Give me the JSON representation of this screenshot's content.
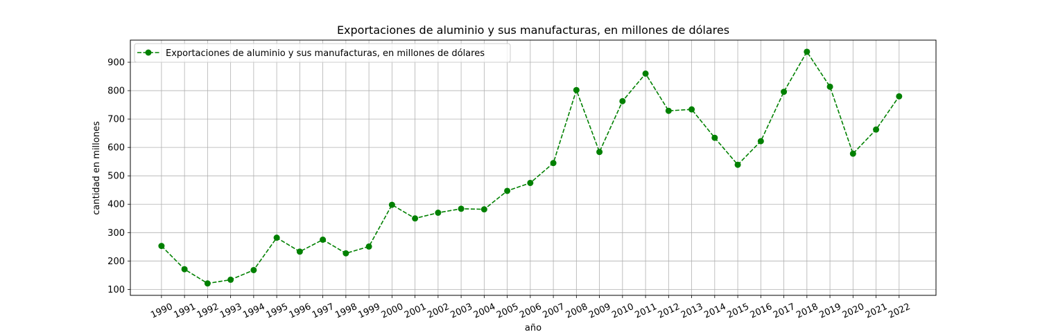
{
  "chart_data": {
    "type": "line",
    "title": "Exportaciones de aluminio y sus manufacturas, en millones de dólares",
    "xlabel": "año",
    "ylabel": "cantidad en millones",
    "x": [
      1990,
      1991,
      1992,
      1993,
      1994,
      1995,
      1996,
      1997,
      1998,
      1999,
      2000,
      2001,
      2002,
      2003,
      2004,
      2005,
      2006,
      2007,
      2008,
      2009,
      2010,
      2011,
      2012,
      2013,
      2014,
      2015,
      2016,
      2017,
      2018,
      2019,
      2020,
      2021,
      2022
    ],
    "x_tick_labels": [
      "1990",
      "1991",
      "1992",
      "1993",
      "1994",
      "1995",
      "1996",
      "1997",
      "1998",
      "1999",
      "2000",
      "2001",
      "2002",
      "2003",
      "2004",
      "2005",
      "2006",
      "2007",
      "2008",
      "2009",
      "2010",
      "2011",
      "2012",
      "2013",
      "2014",
      "2015",
      "2016",
      "2017",
      "2018",
      "2019",
      "2020",
      "2021",
      "2022"
    ],
    "y_ticks": [
      100,
      200,
      300,
      400,
      500,
      600,
      700,
      800,
      900
    ],
    "y_tick_labels": [
      "100",
      "200",
      "300",
      "400",
      "500",
      "600",
      "700",
      "800",
      "900"
    ],
    "ylim": [
      79,
      978
    ],
    "xlim": [
      1988.65,
      2023.6
    ],
    "grid": true,
    "legend_position": "top-left",
    "series": [
      {
        "name": "Exportaciones de aluminio y sus manufacturas, en millones de dólares",
        "color": "#008000",
        "line_style": "dashed",
        "marker": "circle",
        "values": [
          253,
          171,
          121,
          134,
          168,
          282,
          233,
          275,
          227,
          251,
          398,
          350,
          370,
          384,
          382,
          447,
          475,
          545,
          802,
          584,
          763,
          860,
          729,
          734,
          634,
          539,
          622,
          796,
          937,
          814,
          578,
          663,
          780
        ]
      }
    ]
  }
}
